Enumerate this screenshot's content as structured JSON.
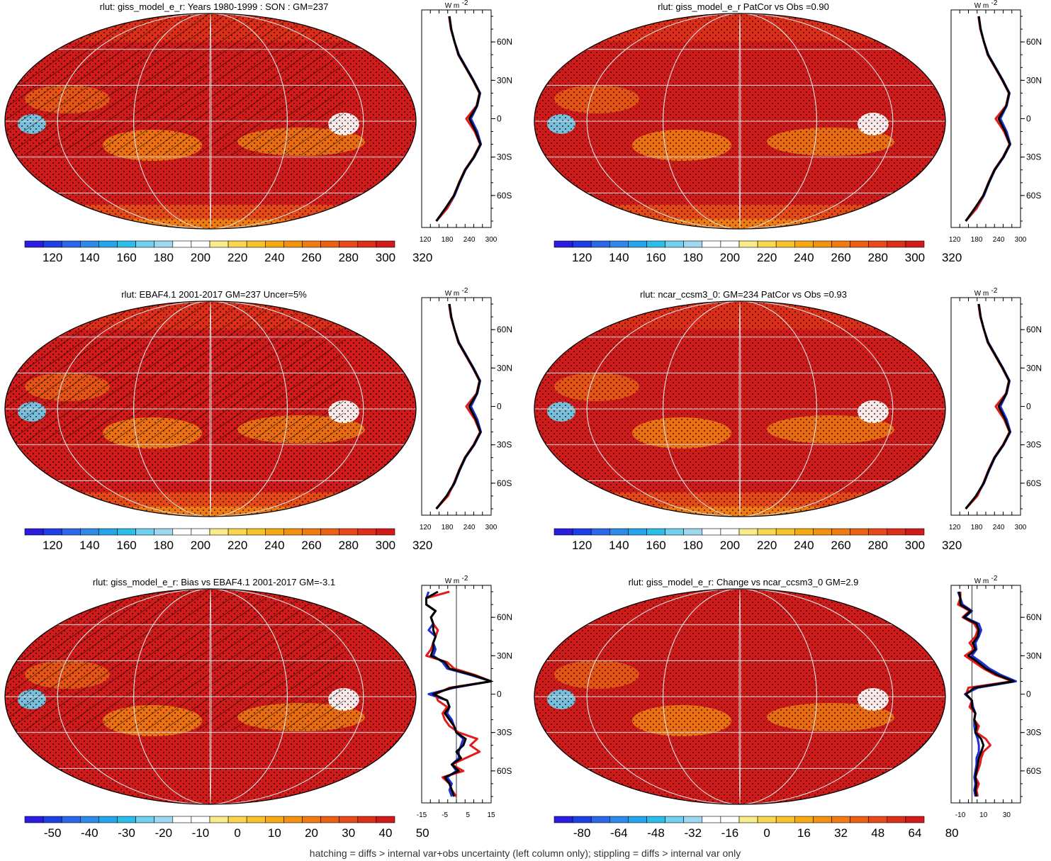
{
  "footer": "hatching = diffs > internal var+obs uncertainty (left column only); stippling = diffs > internal var only",
  "profile_unit": "W m",
  "profile_unit_exp": "-2",
  "lat_ticks": [
    "60N",
    "30N",
    "0",
    "30S",
    "60S"
  ],
  "palette": {
    "mean": [
      "#2a1de0",
      "#1e3fe6",
      "#2b67e8",
      "#2e8ae8",
      "#26a6ea",
      "#2cbde9",
      "#6fd0ef",
      "#9ed8ef",
      "#ffffff",
      "#ffffff",
      "#f9ea8a",
      "#f9d74f",
      "#f8c22a",
      "#f6a913",
      "#f39210",
      "#ef7b12",
      "#ea6114",
      "#e54a18",
      "#dd2e1a",
      "#d11a1a"
    ],
    "diff": [
      "#2a1de0",
      "#1e3fe6",
      "#2b67e8",
      "#2e8ae8",
      "#26a6ea",
      "#2cbde9",
      "#6fd0ef",
      "#9ed8ef",
      "#ffffff",
      "#ffffff",
      "#f9ea8a",
      "#f9d74f",
      "#f8c22a",
      "#f6a913",
      "#f39210",
      "#ef7b12",
      "#ea6114",
      "#e54a18",
      "#dd2e1a",
      "#d11a1a"
    ]
  },
  "line_colors": {
    "model": "#e41a1c",
    "obs": "#1f2fd8",
    "multi": "#000000"
  },
  "chart_data": [
    {
      "type": "heatmap",
      "title": "rlut: giss_model_e_r: Years 1980-1999 : SON : GM=237",
      "colorbar_labels": [
        "120",
        "140",
        "160",
        "180",
        "200",
        "220",
        "240",
        "260",
        "280",
        "300",
        "320"
      ],
      "hatched": true,
      "profile": {
        "type": "line",
        "xlabels": [
          "120",
          "180",
          "240",
          "300"
        ],
        "xlim": [
          110,
          300
        ],
        "lat": [
          -80,
          -70,
          -60,
          -50,
          -40,
          -30,
          -20,
          -10,
          0,
          10,
          20,
          30,
          40,
          50,
          60,
          70,
          80
        ],
        "series": [
          {
            "color": "model",
            "values": [
              150,
              180,
              198,
              212,
              228,
              252,
              270,
              255,
              232,
              260,
              268,
              250,
              230,
              210,
              200,
              190,
              185
            ]
          },
          {
            "color": "obs",
            "values": [
              150,
              180,
              200,
              214,
              230,
              254,
              272,
              262,
              245,
              262,
              270,
              252,
              232,
              212,
              200,
              190,
              185
            ]
          },
          {
            "color": "multi",
            "values": [
              150,
              175,
              198,
              213,
              229,
              253,
              271,
              258,
              240,
              261,
              269,
              251,
              231,
              211,
              200,
              191,
              186
            ]
          }
        ]
      }
    },
    {
      "type": "heatmap",
      "title": "rlut: giss_model_e_r PatCor vs Obs =0.90",
      "colorbar_labels": [
        "120",
        "140",
        "160",
        "180",
        "200",
        "220",
        "240",
        "260",
        "280",
        "300",
        "320"
      ],
      "hatched": false,
      "profile": {
        "type": "line",
        "xlabels": [
          "120",
          "180",
          "240",
          "300"
        ],
        "xlim": [
          110,
          300
        ],
        "lat": [
          -80,
          -70,
          -60,
          -50,
          -40,
          -30,
          -20,
          -10,
          0,
          10,
          20,
          30,
          40,
          50,
          60,
          70,
          80
        ],
        "series": [
          {
            "color": "model",
            "values": [
              150,
              180,
              198,
              212,
              228,
              252,
              270,
              255,
              232,
              260,
              268,
              250,
              230,
              210,
              200,
              190,
              185
            ]
          },
          {
            "color": "obs",
            "values": [
              150,
              180,
              200,
              214,
              230,
              254,
              272,
              262,
              245,
              262,
              270,
              252,
              232,
              212,
              200,
              190,
              185
            ]
          },
          {
            "color": "multi",
            "values": [
              150,
              175,
              198,
              213,
              229,
              253,
              271,
              258,
              240,
              261,
              269,
              251,
              231,
              211,
              200,
              191,
              186
            ]
          }
        ]
      }
    },
    {
      "type": "heatmap",
      "title": "rlut: EBAF4.1 2001-2017 GM=237 Uncer=5%",
      "colorbar_labels": [
        "120",
        "140",
        "160",
        "180",
        "200",
        "220",
        "240",
        "260",
        "280",
        "300",
        "320"
      ],
      "hatched": true,
      "profile": {
        "type": "line",
        "xlabels": [
          "120",
          "180",
          "240",
          "300"
        ],
        "xlim": [
          110,
          300
        ],
        "lat": [
          -80,
          -70,
          -60,
          -50,
          -40,
          -30,
          -20,
          -10,
          0,
          10,
          20,
          30,
          40,
          50,
          60,
          70,
          80
        ],
        "series": [
          {
            "color": "model",
            "values": [
              150,
              182,
              198,
              212,
              228,
              252,
              270,
              255,
              232,
              260,
              268,
              250,
              230,
              210,
              200,
              190,
              185
            ]
          },
          {
            "color": "obs",
            "values": [
              150,
              180,
              200,
              214,
              230,
              254,
              272,
              262,
              245,
              262,
              270,
              252,
              232,
              212,
              200,
              190,
              185
            ]
          },
          {
            "color": "multi",
            "values": [
              150,
              178,
              199,
              213,
              229,
              253,
              271,
              258,
              240,
              261,
              269,
              251,
              231,
              211,
              200,
              191,
              186
            ]
          }
        ]
      }
    },
    {
      "type": "heatmap",
      "title": "rlut: ncar_ccsm3_0: GM=234 PatCor vs Obs =0.93",
      "colorbar_labels": [
        "120",
        "140",
        "160",
        "180",
        "200",
        "220",
        "240",
        "260",
        "280",
        "300",
        "320"
      ],
      "hatched": false,
      "profile": {
        "type": "line",
        "xlabels": [
          "120",
          "180",
          "240",
          "300"
        ],
        "xlim": [
          110,
          300
        ],
        "lat": [
          -80,
          -70,
          -60,
          -50,
          -40,
          -30,
          -20,
          -10,
          0,
          10,
          20,
          30,
          40,
          50,
          60,
          70,
          80
        ],
        "series": [
          {
            "color": "model",
            "values": [
              150,
              182,
              198,
              212,
              228,
              252,
              270,
              255,
              232,
              260,
              268,
              250,
              230,
              210,
              200,
              190,
              185
            ]
          },
          {
            "color": "obs",
            "values": [
              150,
              180,
              200,
              214,
              230,
              254,
              272,
              262,
              245,
              262,
              270,
              252,
              232,
              212,
              200,
              190,
              185
            ]
          },
          {
            "color": "multi",
            "values": [
              150,
              178,
              199,
              213,
              229,
              253,
              271,
              258,
              240,
              261,
              269,
              251,
              231,
              211,
              200,
              191,
              186
            ]
          }
        ]
      }
    },
    {
      "type": "heatmap",
      "title": "rlut: giss_model_e_r: Bias vs EBAF4.1 2001-2017  GM=-3.1",
      "colorbar_labels": [
        "-50",
        "-40",
        "-30",
        "-20",
        "-10",
        "0",
        "10",
        "20",
        "30",
        "40",
        "50"
      ],
      "hatched": true,
      "diff": true,
      "profile": {
        "type": "line",
        "xlabels": [
          "-15",
          "-5",
          "5",
          "15"
        ],
        "xlim": [
          -15,
          15
        ],
        "zero_line": 0,
        "lat": [
          -80,
          -75,
          -70,
          -65,
          -60,
          -55,
          -50,
          -45,
          -40,
          -35,
          -30,
          -25,
          -20,
          -15,
          -10,
          -5,
          0,
          5,
          10,
          15,
          20,
          25,
          30,
          35,
          40,
          45,
          50,
          55,
          60,
          65,
          70,
          75,
          80
        ],
        "series": [
          {
            "color": "model",
            "values": [
              0,
              -2,
              -3,
              -6,
              3,
              -2,
              4,
              10,
              6,
              9,
              1,
              -3,
              -5,
              -6,
              -4,
              -8,
              -9,
              -3,
              15,
              8,
              -1,
              -4,
              -13,
              -11,
              -10,
              -9,
              -8,
              -10,
              -11,
              -9,
              -13,
              -13,
              -3
            ]
          },
          {
            "color": "obs",
            "values": [
              -2,
              -3,
              -2,
              -4,
              0,
              -2,
              1,
              1,
              2,
              3,
              0,
              -1,
              -2,
              -4,
              -3,
              -4,
              -12,
              -1,
              15,
              6,
              -4,
              -6,
              -10,
              -9,
              -10,
              -9,
              -12,
              -10,
              -11,
              -9,
              -13,
              -13,
              -12
            ]
          },
          {
            "color": "multi",
            "values": [
              -1,
              -2,
              -3,
              -5,
              1,
              -2,
              2,
              0,
              3,
              4,
              0,
              -1,
              -3,
              -5,
              -3,
              -4,
              -10,
              -2,
              15,
              7,
              -3,
              -5,
              -11,
              -10,
              -10,
              -9,
              -10,
              -10,
              -11,
              -9,
              -13,
              -13,
              -8
            ]
          }
        ]
      }
    },
    {
      "type": "heatmap",
      "title": "rlut: giss_model_e_r: Change vs ncar_ccsm3_0 GM=2.9",
      "colorbar_labels": [
        "-80",
        "-64",
        "-48",
        "-32",
        "-16",
        "0",
        "16",
        "32",
        "48",
        "64",
        "80"
      ],
      "hatched": false,
      "diff": true,
      "profile": {
        "type": "line",
        "xlabels": [
          "-10",
          "10",
          "30"
        ],
        "xlim": [
          -18,
          42
        ],
        "zero_line": 0,
        "lat": [
          -80,
          -75,
          -70,
          -65,
          -60,
          -55,
          -50,
          -45,
          -40,
          -35,
          -30,
          -25,
          -20,
          -15,
          -10,
          -5,
          0,
          5,
          10,
          15,
          20,
          25,
          30,
          35,
          40,
          45,
          50,
          55,
          60,
          65,
          70,
          75,
          80
        ],
        "series": [
          {
            "color": "model",
            "values": [
              5,
              4,
              6,
              3,
              5,
              7,
              8,
              10,
              16,
              12,
              4,
              6,
              2,
              3,
              -2,
              0,
              -5,
              -3,
              35,
              20,
              10,
              2,
              -6,
              2,
              -2,
              3,
              5,
              2,
              -8,
              -2,
              -12,
              -10,
              -10
            ]
          },
          {
            "color": "obs",
            "values": [
              3,
              2,
              3,
              2,
              3,
              4,
              4,
              6,
              6,
              5,
              3,
              2,
              2,
              3,
              1,
              0,
              -6,
              5,
              38,
              25,
              15,
              8,
              0,
              4,
              3,
              6,
              8,
              6,
              -6,
              0,
              -8,
              -10,
              -12
            ]
          },
          {
            "color": "multi",
            "values": [
              4,
              3,
              4,
              3,
              4,
              5,
              6,
              8,
              10,
              8,
              3,
              4,
              2,
              3,
              0,
              0,
              -5,
              2,
              36,
              22,
              12,
              5,
              -3,
              3,
              1,
              5,
              6,
              4,
              -7,
              -1,
              -10,
              -10,
              -11
            ]
          }
        ]
      }
    }
  ]
}
